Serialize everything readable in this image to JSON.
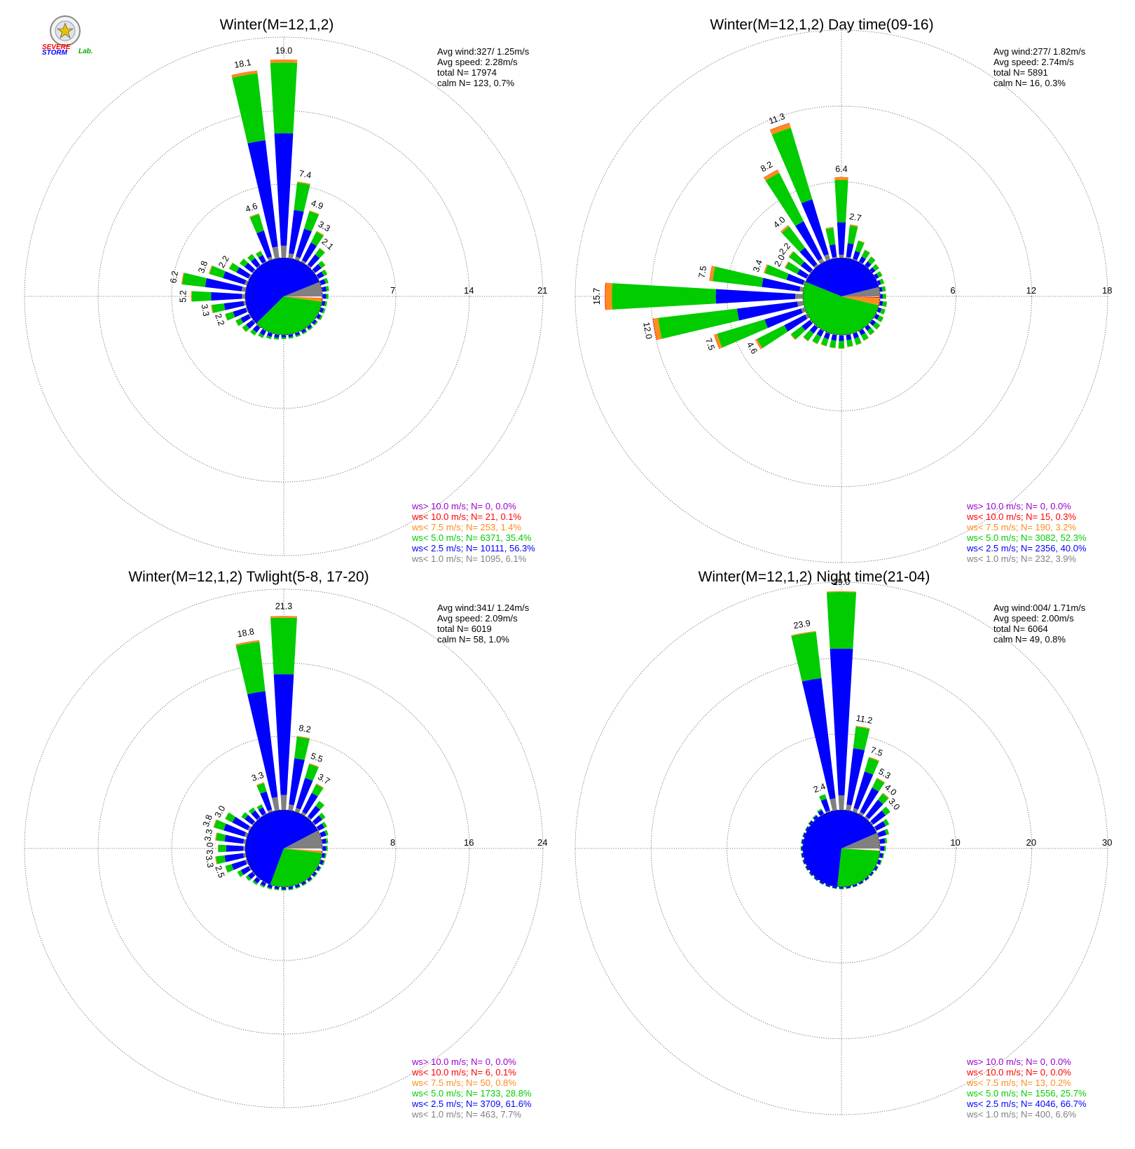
{
  "logo": {
    "text_severe": "SEVERE",
    "text_storm": "STORM",
    "text_lab": "Lab."
  },
  "colors": {
    "ws_gt10": "#9900cc",
    "ws_lt10": "#ff0000",
    "ws_lt7_5": "#ff8c1a",
    "ws_lt5": "#00cc00",
    "ws_lt2_5": "#0000ff",
    "ws_lt1": "#808080",
    "grid": "#555555"
  },
  "chart_data": [
    {
      "type": "polar-bar",
      "title": "Winter(M=12,1,2)",
      "stats": [
        "Avg wind:327/ 1.25m/s",
        "Avg speed: 2.28m/s",
        "total N=      17974",
        "calm N=    123,   0.7%"
      ],
      "rings": [
        7,
        14,
        21
      ],
      "ring_labels": [
        "7",
        "14",
        "21"
      ],
      "values": [
        19.0,
        7.4,
        4.9,
        3.3,
        2.1,
        1.3,
        1.0,
        0.8,
        0.7,
        0.6,
        0.5,
        0.5,
        0.5,
        0.4,
        0.4,
        0.4,
        0.4,
        0.4,
        0.4,
        0.5,
        0.6,
        0.8,
        1.0,
        1.3,
        1.5,
        2.2,
        3.3,
        5.2,
        6.2,
        3.8,
        2.2,
        1.6,
        1.4,
        1.2,
        4.6,
        18.1
      ],
      "labels": [
        "19.0",
        "7.4",
        "4.9",
        "3.3",
        "2.1",
        "",
        "",
        "",
        "",
        "",
        "",
        "",
        "",
        "",
        "",
        "",
        "",
        "",
        "",
        "",
        "",
        "",
        "",
        "",
        "",
        "2.2",
        "3.3",
        "5.2",
        "6.2",
        "3.8",
        "2.2",
        "",
        "",
        "",
        "4.6",
        "18.1"
      ],
      "pie": [
        0.061,
        0.563,
        0.354,
        0.014,
        0.001,
        0.0
      ],
      "legend": [
        "ws> 10.0 m/s; N=     0,  0.0%",
        "ws< 10.0 m/s; N=    21,  0.1%",
        "ws<  7.5 m/s; N=   253,  1.4%",
        "ws<  5.0 m/s; N=  6371, 35.4%",
        "ws<  2.5 m/s; N= 10111, 56.3%",
        "ws<  1.0 m/s; N=  1095,  6.1%"
      ]
    },
    {
      "type": "polar-bar",
      "title": "Winter(M=12,1,2) Day time(09-16)",
      "stats": [
        "Avg wind:277/ 1.82m/s",
        "Avg speed: 2.74m/s",
        "total N=       5891",
        "calm N=     16,   0.3%"
      ],
      "rings": [
        6,
        12,
        18
      ],
      "ring_labels": [
        "6",
        "12",
        "18"
      ],
      "values": [
        6.4,
        2.7,
        1.6,
        1.1,
        0.9,
        0.7,
        0.6,
        0.5,
        0.5,
        0.5,
        0.6,
        0.6,
        0.7,
        0.8,
        0.8,
        0.9,
        1.0,
        1.0,
        1.1,
        1.1,
        1.1,
        1.2,
        1.4,
        2.0,
        4.6,
        7.5,
        12.0,
        15.7,
        7.5,
        3.4,
        2.0,
        2.2,
        4.0,
        8.2,
        11.3,
        2.5
      ],
      "labels": [
        "6.4",
        "2.7",
        "",
        "",
        "",
        "",
        "",
        "",
        "",
        "",
        "",
        "",
        "",
        "",
        "",
        "",
        "",
        "",
        "",
        "",
        "",
        "",
        "",
        "",
        "4.6",
        "7.5",
        "12.0",
        "15.7",
        "7.5",
        "3.4",
        "2.0",
        "2.2",
        "4.0",
        "8.2",
        "11.3",
        ""
      ],
      "pie": [
        0.039,
        0.4,
        0.523,
        0.032,
        0.003,
        0.0
      ],
      "legend": [
        "ws> 10.0 m/s; N=     0,  0.0%",
        "ws< 10.0 m/s; N=    15,  0.3%",
        "ws<  7.5 m/s; N=   190,  3.2%",
        "ws<  5.0 m/s; N=  3082, 52.3%",
        "ws<  2.5 m/s; N=  2356, 40.0%",
        "ws<  1.0 m/s; N=   232,  3.9%"
      ]
    },
    {
      "type": "polar-bar",
      "title": "Winter(M=12,1,2) Twlight(5-8, 17-20)",
      "stats": [
        "Avg wind:341/ 1.24m/s",
        "Avg speed: 2.09m/s",
        "total N=       6019",
        "calm N=     58,   1.0%"
      ],
      "rings": [
        8,
        16,
        24
      ],
      "ring_labels": [
        "8",
        "16",
        "24"
      ],
      "values": [
        21.3,
        8.2,
        5.5,
        3.7,
        2.3,
        1.5,
        1.1,
        0.9,
        0.7,
        0.6,
        0.5,
        0.5,
        0.4,
        0.4,
        0.4,
        0.4,
        0.4,
        0.4,
        0.4,
        0.4,
        0.5,
        0.6,
        0.8,
        1.0,
        1.5,
        2.5,
        3.3,
        3.0,
        3.3,
        3.8,
        3.0,
        1.6,
        1.4,
        1.2,
        3.3,
        18.8
      ],
      "labels": [
        "21.3",
        "8.2",
        "5.5",
        "3.7",
        "",
        "",
        "",
        "",
        "",
        "",
        "",
        "",
        "",
        "",
        "",
        "",
        "",
        "",
        "",
        "",
        "",
        "",
        "",
        "",
        "",
        "2.5",
        "3.3",
        "3.0",
        "3.3",
        "3.8",
        "3.0",
        "",
        "",
        "",
        "3.3",
        "18.8"
      ],
      "pie": [
        0.077,
        0.616,
        0.288,
        0.008,
        0.001,
        0.0
      ],
      "legend": [
        "ws> 10.0 m/s; N=     0,  0.0%",
        "ws< 10.0 m/s; N=     6,  0.1%",
        "ws<  7.5 m/s; N=    50,  0.8%",
        "ws<  5.0 m/s; N=  1733, 28.8%",
        "ws<  2.5 m/s; N=  3709, 61.6%",
        "ws<  1.0 m/s; N=   463,  7.7%"
      ]
    },
    {
      "type": "polar-bar",
      "title": "Winter(M=12,1,2) Night time(21-04)",
      "stats": [
        "Avg wind:004/ 1.71m/s",
        "Avg speed: 2.00m/s",
        "total N=       6064",
        "calm N=     49,   0.8%"
      ],
      "rings": [
        10,
        20,
        30
      ],
      "ring_labels": [
        "10",
        "20",
        "30"
      ],
      "values": [
        29.0,
        11.2,
        7.5,
        5.3,
        4.0,
        3.0,
        2.0,
        1.5,
        1.0,
        0.8,
        0.6,
        0.5,
        0.4,
        0.3,
        0.3,
        0.3,
        0.3,
        0.3,
        0.3,
        0.3,
        0.3,
        0.3,
        0.3,
        0.3,
        0.3,
        0.3,
        0.3,
        0.3,
        0.3,
        0.3,
        0.3,
        0.4,
        0.5,
        0.8,
        2.4,
        23.9
      ],
      "labels": [
        "29.0",
        "11.2",
        "7.5",
        "5.3",
        "4.0",
        "3.0",
        "",
        "",
        "",
        "",
        "",
        "",
        "",
        "",
        "",
        "",
        "",
        "",
        "",
        "",
        "",
        "",
        "",
        "",
        "",
        "",
        "",
        "",
        "",
        "",
        "",
        "",
        "",
        "",
        "2.4",
        "23.9"
      ],
      "pie": [
        0.066,
        0.667,
        0.257,
        0.002,
        0.0,
        0.0
      ],
      "legend": [
        "ws> 10.0 m/s; N=     0,  0.0%",
        "ws< 10.0 m/s; N=     0,  0.0%",
        "ws<  7.5 m/s; N=    13,  0.2%",
        "ws<  5.0 m/s; N=  1556, 25.7%",
        "ws<  2.5 m/s; N=  4046, 66.7%",
        "ws<  1.0 m/s; N=   400,  6.6%"
      ]
    }
  ]
}
